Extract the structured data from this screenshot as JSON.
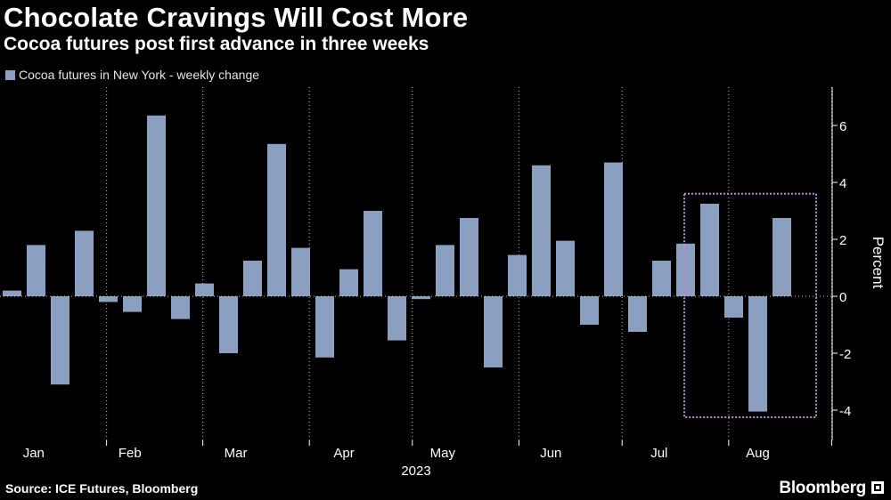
{
  "title": "Chocolate Cravings Will Cost More",
  "subtitle": "Cocoa futures post first advance in three weeks",
  "source": "Source: ICE Futures, Bloomberg",
  "brand": "Bloomberg",
  "colors": {
    "bar": "#8ba0c0",
    "highlight": "#c785e0",
    "grid": "#bfbfbf",
    "background": "#000000"
  },
  "chart_data": {
    "type": "bar",
    "title": "Chocolate Cravings Will Cost More",
    "subtitle": "Cocoa futures post first advance in three weeks",
    "series_name": "Cocoa futures in New York - weekly change",
    "ylabel": "Percent",
    "xlabel": "2023",
    "ylim": [
      -5,
      7.2
    ],
    "yticks": [
      -4,
      -2,
      0,
      2,
      4,
      6
    ],
    "y_axis_position": "right",
    "grid": "vertical dotted lines at month boundaries",
    "months": [
      "Jan",
      "Feb",
      "Mar",
      "Apr",
      "May",
      "Jun",
      "Jul",
      "Aug"
    ],
    "values": [
      0.2,
      1.8,
      -3.1,
      2.3,
      -0.2,
      -0.55,
      6.35,
      -0.8,
      0.45,
      -2.0,
      1.25,
      5.35,
      1.7,
      -2.15,
      0.95,
      3.0,
      -1.55,
      -0.1,
      1.8,
      2.75,
      -2.5,
      1.45,
      4.6,
      1.95,
      -1.0,
      4.7,
      -1.25,
      1.25,
      1.85,
      3.25,
      -0.75,
      -4.05,
      2.75
    ],
    "highlight_range": {
      "from_week": 29,
      "to_week": 33,
      "label": ""
    }
  }
}
